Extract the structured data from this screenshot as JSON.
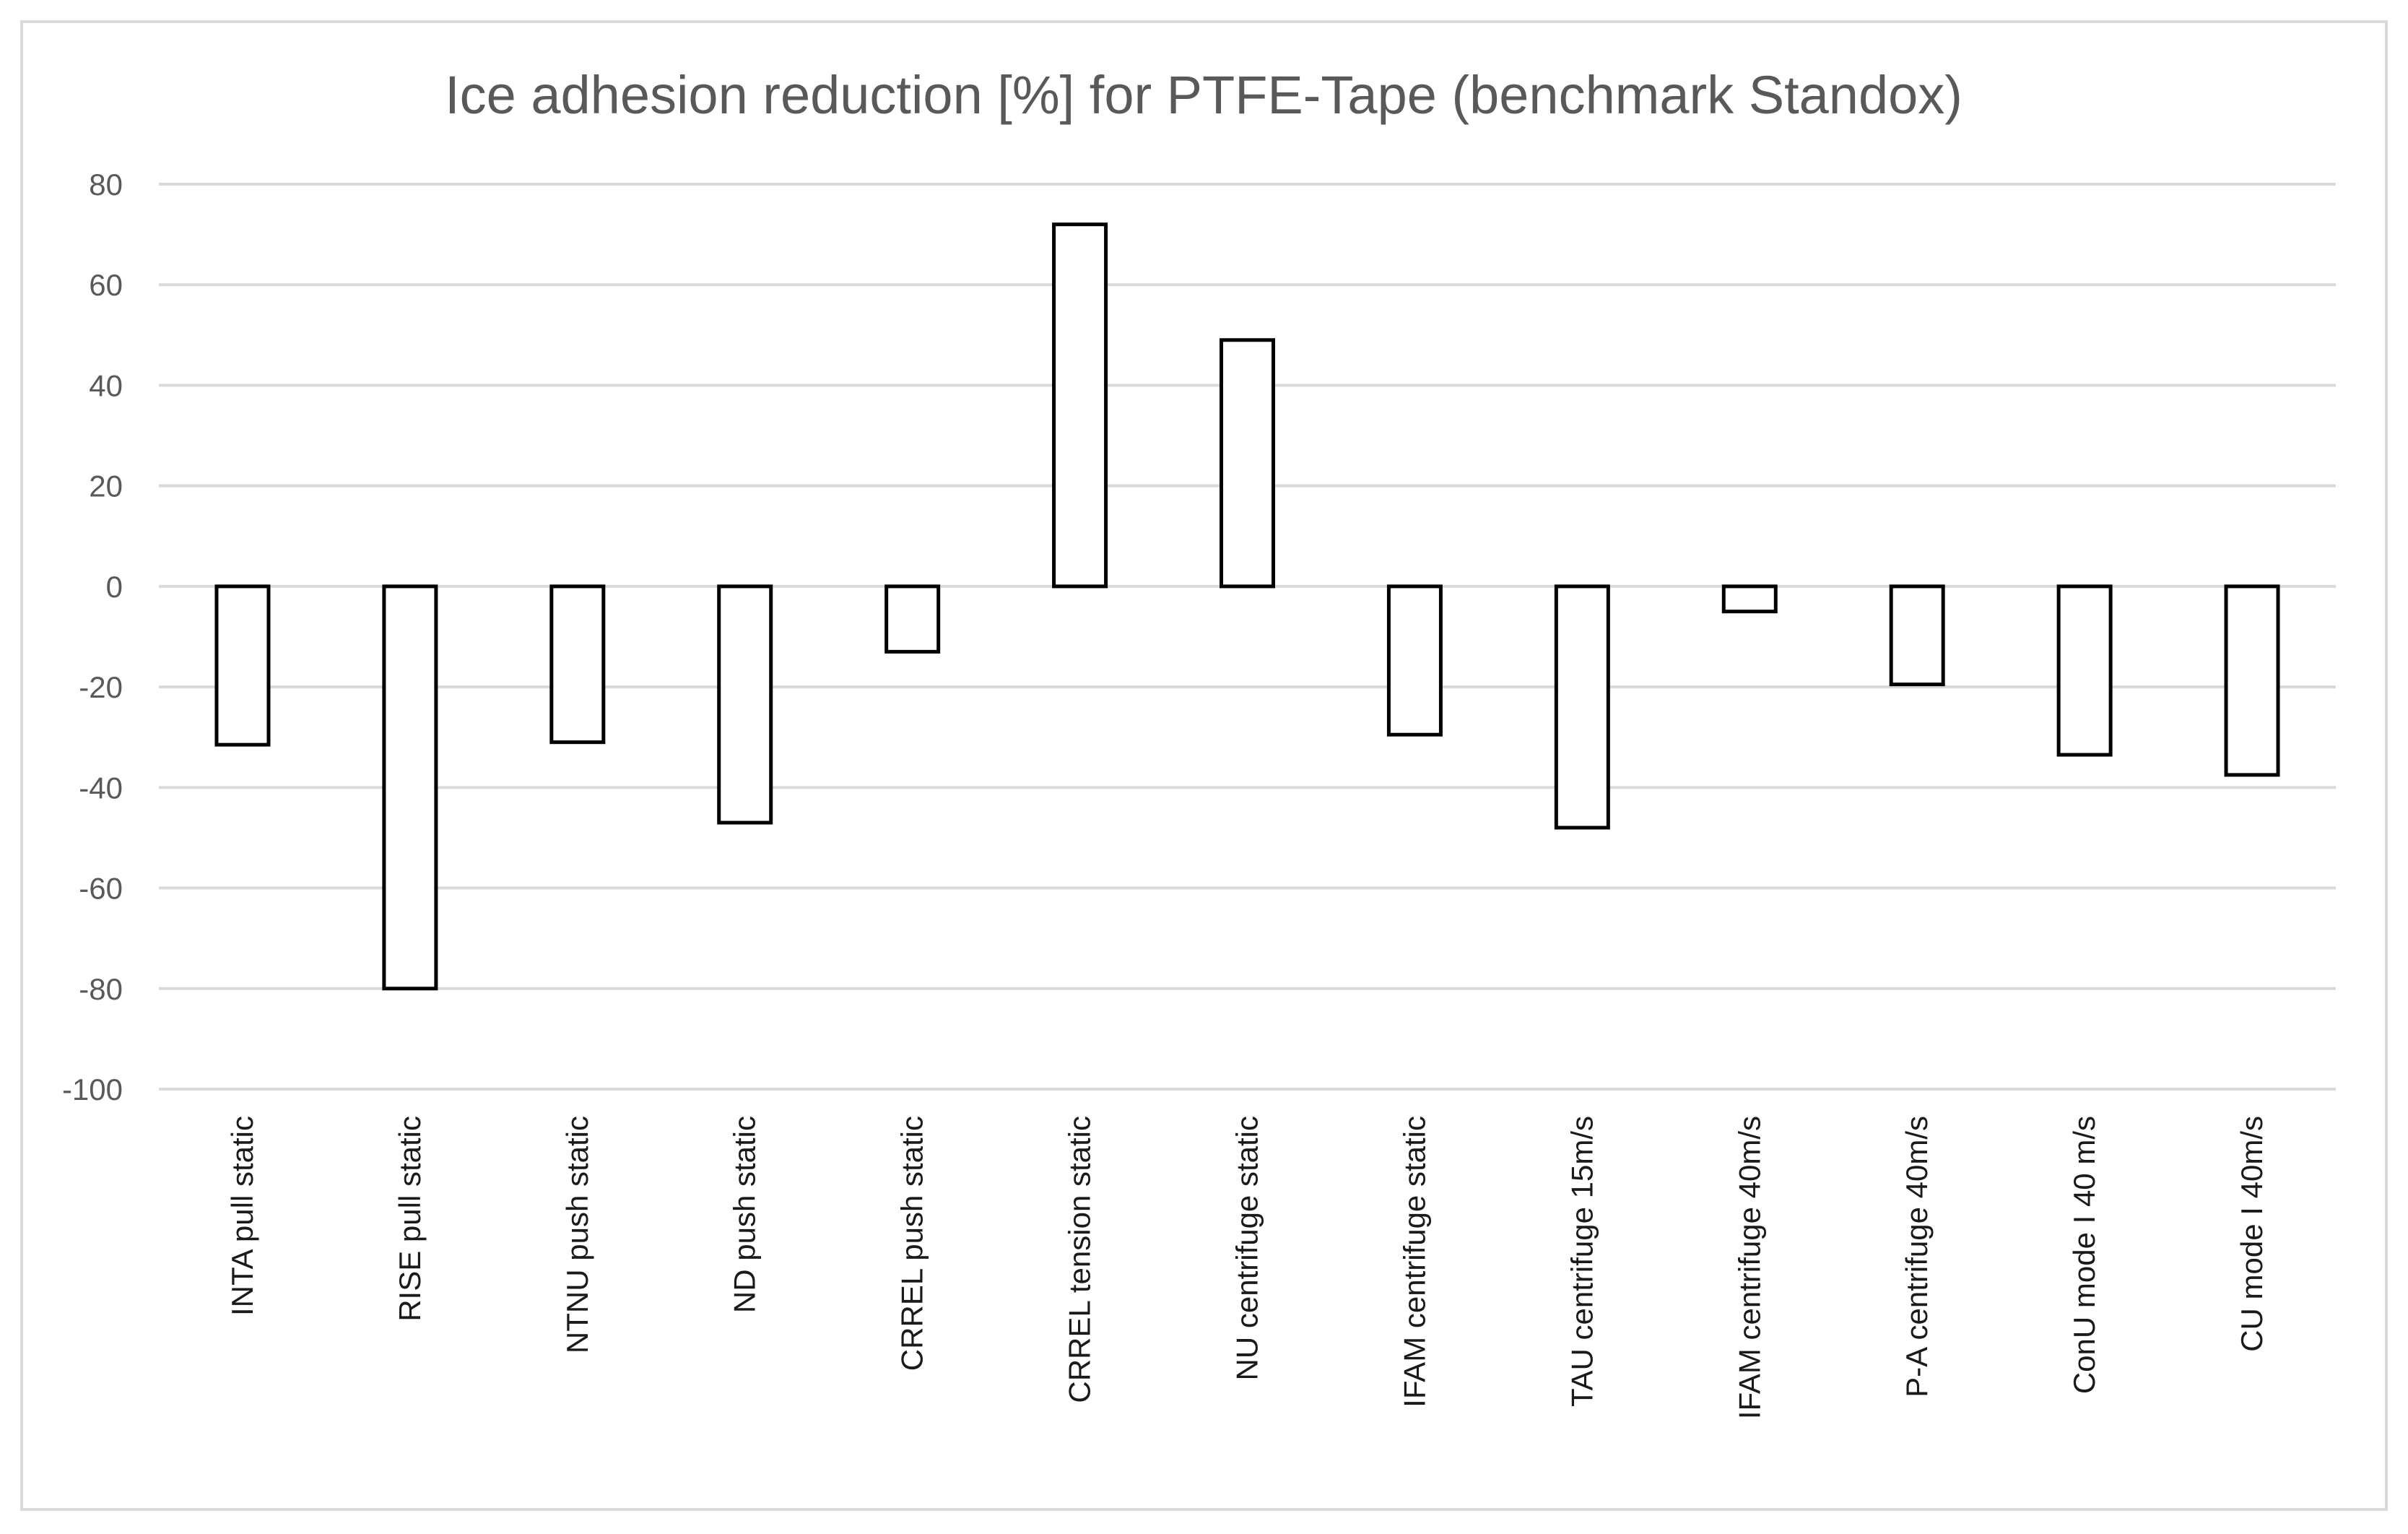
{
  "chart_data": {
    "type": "bar",
    "title": "Ice adhesion reduction [%] for PTFE-Tape (benchmark Standox)",
    "xlabel": "",
    "ylabel": "",
    "ylim": [
      -100,
      80
    ],
    "yticks": [
      80,
      60,
      40,
      20,
      0,
      -20,
      -40,
      -60,
      -80,
      -100
    ],
    "grid": true,
    "legend": "none",
    "categories": [
      "INTA pull static",
      "RISE pull static",
      "NTNU push static",
      "ND push static",
      "CRREL push static",
      "CRREL tension static",
      "NU centrifuge  static",
      "IFAM centrifuge  static",
      "TAU centrifuge 15m/s",
      "IFAM centrifuge 40m/s",
      "P-A centrifuge 40m/s",
      "ConU mode I 40 m/s",
      "CU mode I 40m/s"
    ],
    "values": [
      -31.5,
      -80,
      -31,
      -47,
      -13,
      72,
      49,
      -29.5,
      -48,
      -5,
      -19.5,
      -33.5,
      -37.5
    ],
    "colors": {
      "bar_fill": "#ffffff",
      "bar_stroke": "#000000",
      "grid": "#d9d9d9",
      "text": "#595959"
    }
  }
}
